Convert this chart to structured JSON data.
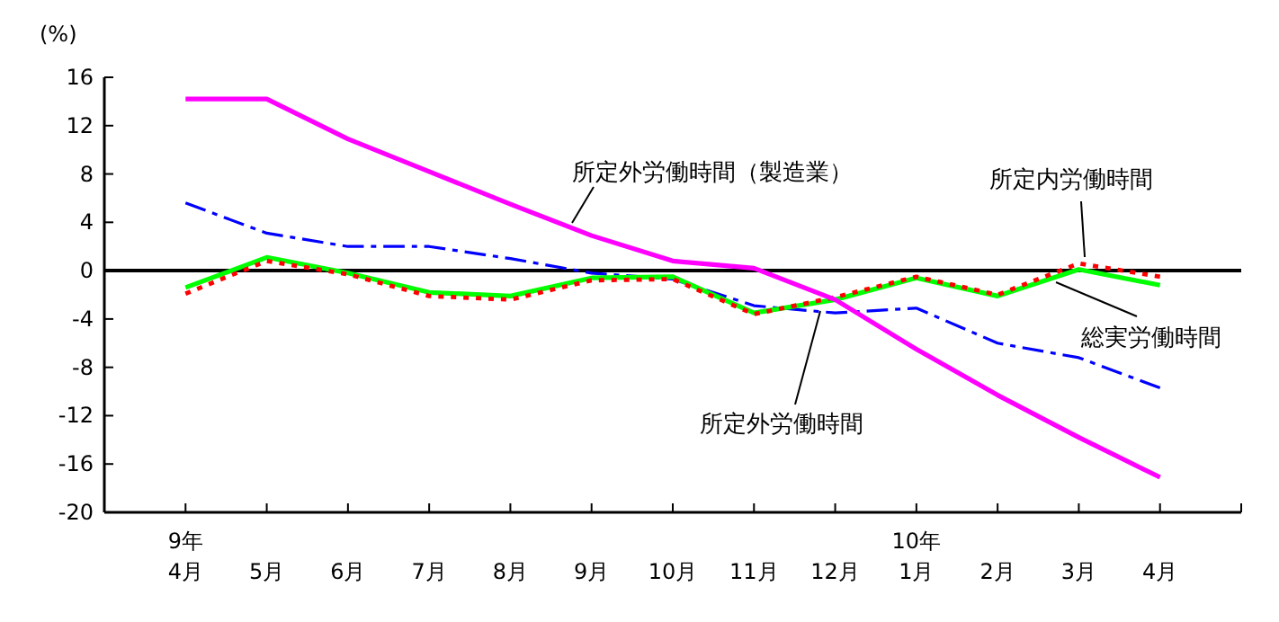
{
  "chart_data": {
    "type": "line",
    "ylabel": "(%)",
    "categories": [
      "9年\n4月",
      "5月",
      "6月",
      "7月",
      "8月",
      "9月",
      "10月",
      "11月",
      "12月",
      "10年\n1月",
      "2月",
      "3月",
      "4月"
    ],
    "ylim": [
      -20,
      16
    ],
    "yticks": [
      -20,
      -16,
      -12,
      -8,
      -4,
      0,
      4,
      8,
      12,
      16
    ],
    "ref_lines": [
      {
        "axis": "y",
        "value": 0
      }
    ],
    "series": [
      {
        "name": "所定外労働時間",
        "color": "#0000ff",
        "line_style": "dashed",
        "values": [
          5.6,
          3.1,
          2.0,
          2.0,
          1.0,
          -0.2,
          -0.7,
          -2.9,
          -3.5,
          -3.1,
          -6.0,
          -7.2,
          -9.7
        ]
      },
      {
        "name": "総実労働時間",
        "color": "#00ff00",
        "line_style": "solid",
        "values": [
          -1.4,
          1.1,
          -0.2,
          -1.8,
          -2.1,
          -0.6,
          -0.5,
          -3.5,
          -2.4,
          -0.6,
          -2.1,
          0.1,
          -1.2
        ]
      },
      {
        "name": "所定内労働時間",
        "color": "#ff0000",
        "line_style": "dotted",
        "values": [
          -1.9,
          0.8,
          -0.3,
          -2.1,
          -2.4,
          -0.8,
          -0.7,
          -3.6,
          -2.2,
          -0.5,
          -2.0,
          0.6,
          -0.5
        ]
      },
      {
        "name": "所定外労働時間（製造業）",
        "color": "#ff00ff",
        "line_style": "solid",
        "values": [
          14.2,
          14.2,
          10.9,
          8.2,
          5.5,
          2.9,
          0.8,
          0.2,
          -2.4,
          -6.5,
          -10.3,
          -13.8,
          -17.1
        ]
      }
    ]
  }
}
